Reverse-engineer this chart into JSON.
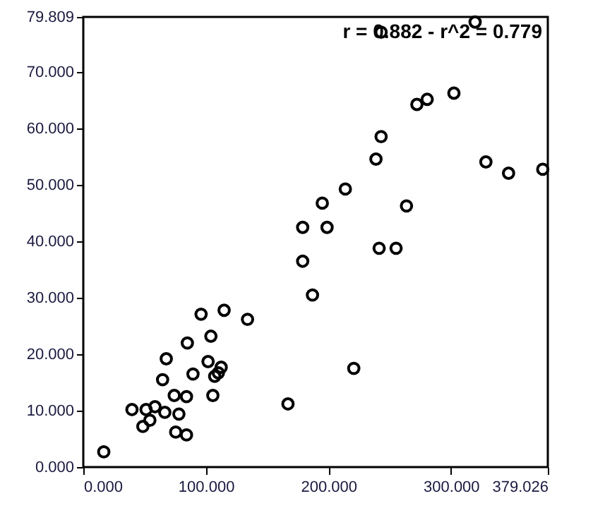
{
  "chart_data": {
    "type": "scatter",
    "annotations": [
      "r = 0.882 - r^2 = 0.779"
    ],
    "x": [
      16.7,
      39.7,
      51.2,
      58.5,
      54.3,
      48.6,
      66.5,
      78,
      75.4,
      84.2,
      74.2,
      84.2,
      64.7,
      67.7,
      89.5,
      84.9,
      101.8,
      105.7,
      104.1,
      107.2,
      110.2,
      112.5,
      167,
      220.7,
      96.1,
      114.9,
      134,
      187,
      179,
      179,
      198.9,
      195,
      213.8,
      241.4,
      255.2,
      263.7,
      238.8,
      328.5,
      347,
      374.9,
      243,
      272.2,
      280.6,
      302.4,
      319.7,
      243
    ],
    "series": [
      {
        "color": "#000000",
        "values": [
          2.7,
          10.2,
          10.2,
          10.7,
          8.3,
          7.2,
          9.7,
          9.4,
          6.2,
          5.7,
          12.7,
          12.5,
          15.5,
          19.2,
          16.5,
          22.0,
          18.7,
          12.7,
          23.2,
          16.1,
          16.7,
          17.7,
          11.2,
          17.5,
          27.1,
          27.8,
          26.2,
          30.5,
          36.5,
          42.5,
          42.5,
          46.8,
          49.3,
          38.8,
          38.8,
          46.3,
          54.6,
          54.1,
          52.1,
          52.8,
          58.6,
          64.3,
          65.2,
          66.3,
          78.9,
          77.1
        ]
      }
    ],
    "marker": "circle",
    "xlim": [
      0,
      379.026
    ],
    "xticks": [
      {
        "value": 0,
        "label": "0.000"
      },
      {
        "value": 100,
        "label": "100.000"
      },
      {
        "value": 200,
        "label": "200.000"
      },
      {
        "value": 300,
        "label": "300.000"
      },
      {
        "value": 379.026,
        "label": "379.026"
      }
    ],
    "ylim": [
      0,
      79.809
    ],
    "yticks": [
      {
        "value": 0,
        "label": "0.000"
      },
      {
        "value": 10,
        "label": "10.000"
      },
      {
        "value": 20,
        "label": "20.000"
      },
      {
        "value": 30,
        "label": "30.000"
      },
      {
        "value": 40,
        "label": "40.000"
      },
      {
        "value": 50,
        "label": "50.000"
      },
      {
        "value": 60,
        "label": "60.000"
      },
      {
        "value": 70,
        "label": "70.000"
      },
      {
        "value": 79.809,
        "label": "79.809"
      }
    ],
    "grid": false
  }
}
